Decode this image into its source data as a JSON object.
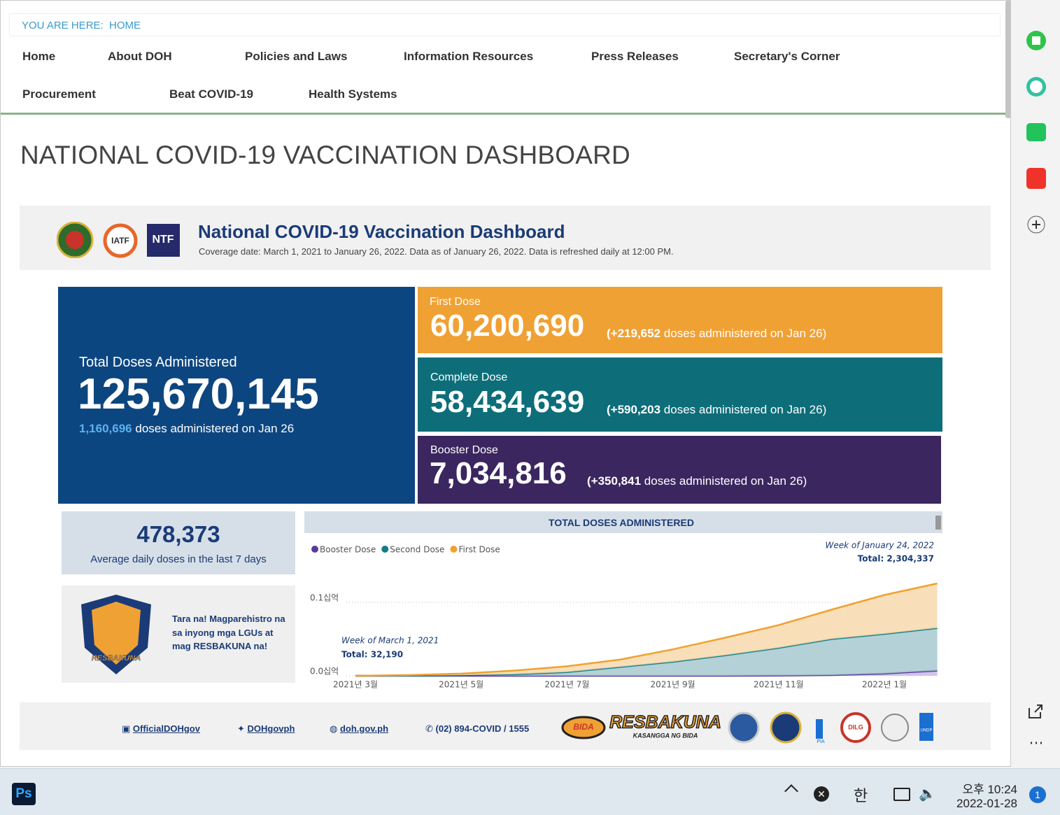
{
  "breadcrumb": {
    "label": "YOU ARE HERE:",
    "current": "HOME"
  },
  "nav": [
    "Home",
    "About DOH",
    "Policies and Laws",
    "Information Resources",
    "Press Releases",
    "Secretary's Corner",
    "Procurement",
    "Beat COVID-19",
    "Health Systems"
  ],
  "page_title": "NATIONAL COVID-19 VACCINATION DASHBOARD",
  "dashboard": {
    "title": "National COVID-19 Vaccination Dashboard",
    "coverage": "Coverage date: March 1, 2021 to January 26, 2022. Data as of January 26, 2022. Data is refreshed daily at 12:00 PM.",
    "logos": [
      "IATF",
      "NTF"
    ]
  },
  "total": {
    "label": "Total Doses Administered",
    "value": "125,670,145",
    "daily": "1,160,696",
    "daily_text": "doses administered on Jan 26"
  },
  "first": {
    "label": "First Dose",
    "value": "60,200,690",
    "daily": "(+219,652",
    "daily_text": "doses administered on Jan 26)"
  },
  "complete": {
    "label": "Complete Dose",
    "value": "58,434,639",
    "daily": "(+590,203",
    "daily_text": "doses administered on Jan 26)"
  },
  "booster": {
    "label": "Booster Dose",
    "value": "7,034,816",
    "daily": "(+350,841",
    "daily_text": "doses administered on Jan 26)"
  },
  "average": {
    "value": "478,373",
    "label": "Average daily doses in the last 7 days"
  },
  "promo": {
    "text": "Tara na! Magparehistro na sa inyong mga LGUs at mag RESBAKUNA na!",
    "logo": "RESBAKUNA"
  },
  "footer": {
    "facebook": "OfficialDOHgov",
    "twitter": "DOHgovph",
    "website": "doh.gov.ph",
    "phone": "(02) 894-COVID / 1555",
    "logos": [
      "BIDA",
      "RESBAKUNA",
      "KASANGGA NG BIDA",
      "PIA",
      "DILG",
      "UNDP"
    ]
  },
  "taskbar": {
    "app": "Ps",
    "ime": "한",
    "time": "오후 10:24",
    "date": "2022-01-28",
    "notifications": "1"
  },
  "chart_data": {
    "type": "area",
    "title": "TOTAL DOSES ADMINISTERED",
    "categories": [
      "2021년 3월",
      null,
      "2021년 5월",
      null,
      "2021년 7월",
      null,
      "2021년 9월",
      null,
      "2021년 11월",
      null,
      "2022년 1월",
      null
    ],
    "series": [
      {
        "name": "Booster Dose",
        "color": "#5a3a9a",
        "values": [
          0,
          0,
          0,
          0,
          0,
          0,
          0,
          0,
          0.0002,
          0.001,
          0.003,
          0.007
        ]
      },
      {
        "name": "Second Dose",
        "color": "#127d86",
        "values": [
          0,
          0.0002,
          0.0008,
          0.002,
          0.005,
          0.012,
          0.019,
          0.028,
          0.0378,
          0.049,
          0.054,
          0.058
        ]
      },
      {
        "name": "First Dose",
        "color": "#f0a130",
        "values": [
          0,
          0.0008,
          0.0022,
          0.005,
          0.008,
          0.01,
          0.017,
          0.024,
          0.031,
          0.04,
          0.053,
          0.0607
        ]
      }
    ],
    "ylim": [
      0,
      0.13
    ],
    "yticks": [
      {
        "value": 0,
        "label": "0.0십억"
      },
      {
        "value": 0.1,
        "label": "0.1십억"
      }
    ],
    "annotations": [
      {
        "text": "Week of January 24, 2022",
        "total": "Total: 2,304,337"
      },
      {
        "text": "Week of March 1, 2021",
        "total": "Total: 32,190"
      }
    ]
  }
}
